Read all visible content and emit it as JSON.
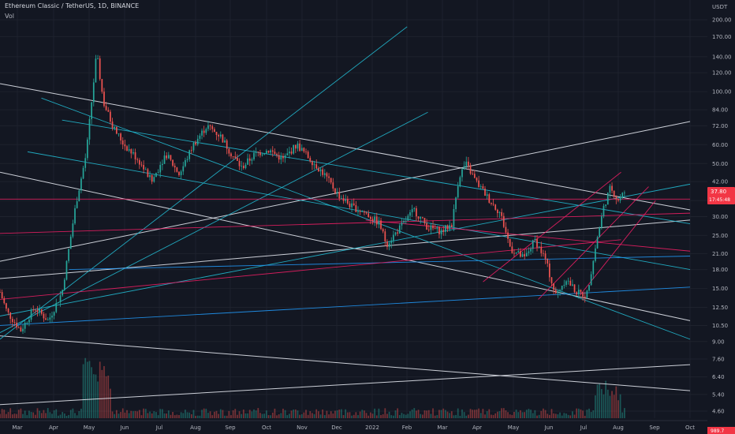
{
  "header": {
    "title": "Ethereum Classic / TetherUS, 1D, BINANCE",
    "indicator": "Vol"
  },
  "chart_data": {
    "type": "candlestick",
    "symbol": "Ethereum Classic / TetherUS",
    "interval": "1D",
    "exchange": "BINANCE",
    "currency": "USDT",
    "scale": "log",
    "y_ticks": [
      200,
      170,
      140,
      120,
      100,
      84,
      72,
      60,
      50,
      42,
      35,
      30,
      25,
      21,
      18,
      15,
      12.5,
      10.5,
      9,
      7.6,
      6.4,
      5.4,
      4.6
    ],
    "x_ticks": [
      "Mar",
      "Apr",
      "May",
      "Jun",
      "Jul",
      "Aug",
      "Sep",
      "Oct",
      "Nov",
      "Dec",
      "2022",
      "Feb",
      "Mar",
      "Apr",
      "May",
      "Jun",
      "Jul",
      "Aug",
      "Sep",
      "Oct"
    ],
    "last_price": "37.80",
    "countdown": "17:45:48",
    "volume_last": "989.7",
    "colors": {
      "up": "#26a69a",
      "down": "#ef5350",
      "white_line": "#e0e3eb",
      "cyan_line": "#22b8cf",
      "pink_line": "#e91e63",
      "blue_line": "#2196f3"
    },
    "path_close": [
      {
        "t": 0.0,
        "p": 14.5
      },
      {
        "t": 0.01,
        "p": 12.0
      },
      {
        "t": 0.03,
        "p": 10.0
      },
      {
        "t": 0.05,
        "p": 12.5
      },
      {
        "t": 0.07,
        "p": 11.0
      },
      {
        "t": 0.09,
        "p": 14.5
      },
      {
        "t": 0.11,
        "p": 34.0
      },
      {
        "t": 0.125,
        "p": 55.0
      },
      {
        "t": 0.14,
        "p": 145.0
      },
      {
        "t": 0.15,
        "p": 90.0
      },
      {
        "t": 0.165,
        "p": 70.0
      },
      {
        "t": 0.18,
        "p": 60.0
      },
      {
        "t": 0.2,
        "p": 52.0
      },
      {
        "t": 0.22,
        "p": 42.0
      },
      {
        "t": 0.24,
        "p": 55.0
      },
      {
        "t": 0.26,
        "p": 45.0
      },
      {
        "t": 0.28,
        "p": 60.0
      },
      {
        "t": 0.3,
        "p": 72.0
      },
      {
        "t": 0.32,
        "p": 65.0
      },
      {
        "t": 0.335,
        "p": 55.0
      },
      {
        "t": 0.35,
        "p": 48.0
      },
      {
        "t": 0.37,
        "p": 55.0
      },
      {
        "t": 0.39,
        "p": 57.0
      },
      {
        "t": 0.41,
        "p": 52.0
      },
      {
        "t": 0.43,
        "p": 60.0
      },
      {
        "t": 0.45,
        "p": 52.0
      },
      {
        "t": 0.47,
        "p": 45.0
      },
      {
        "t": 0.49,
        "p": 37.0
      },
      {
        "t": 0.51,
        "p": 33.0
      },
      {
        "t": 0.53,
        "p": 31.0
      },
      {
        "t": 0.55,
        "p": 28.0
      },
      {
        "t": 0.56,
        "p": 23.0
      },
      {
        "t": 0.58,
        "p": 27.0
      },
      {
        "t": 0.6,
        "p": 32.0
      },
      {
        "t": 0.62,
        "p": 27.0
      },
      {
        "t": 0.64,
        "p": 26.0
      },
      {
        "t": 0.655,
        "p": 28.0
      },
      {
        "t": 0.665,
        "p": 44.0
      },
      {
        "t": 0.675,
        "p": 50.0
      },
      {
        "t": 0.69,
        "p": 42.0
      },
      {
        "t": 0.71,
        "p": 35.0
      },
      {
        "t": 0.725,
        "p": 31.0
      },
      {
        "t": 0.74,
        "p": 22.0
      },
      {
        "t": 0.76,
        "p": 20.0
      },
      {
        "t": 0.775,
        "p": 24.0
      },
      {
        "t": 0.79,
        "p": 20.0
      },
      {
        "t": 0.805,
        "p": 14.0
      },
      {
        "t": 0.82,
        "p": 16.5
      },
      {
        "t": 0.835,
        "p": 14.5
      },
      {
        "t": 0.85,
        "p": 14.0
      },
      {
        "t": 0.865,
        "p": 24.0
      },
      {
        "t": 0.875,
        "p": 33.0
      },
      {
        "t": 0.885,
        "p": 40.0
      },
      {
        "t": 0.895,
        "p": 35.0
      },
      {
        "t": 0.905,
        "p": 37.8
      }
    ],
    "trendlines": [
      {
        "color": "white",
        "from": [
          0.0,
          108.0
        ],
        "to": [
          1.0,
          32.0
        ]
      },
      {
        "color": "white",
        "from": [
          0.0,
          46.0
        ],
        "to": [
          1.0,
          11.0
        ]
      },
      {
        "color": "white",
        "from": [
          0.0,
          9.5
        ],
        "to": [
          1.0,
          5.6
        ]
      },
      {
        "color": "white",
        "from": [
          0.0,
          4.9
        ],
        "to": [
          1.0,
          7.2
        ]
      },
      {
        "color": "white",
        "from": [
          0.0,
          19.5
        ],
        "to": [
          1.0,
          75.0
        ]
      },
      {
        "color": "white",
        "from": [
          0.0,
          16.5
        ],
        "to": [
          1.0,
          29.0
        ]
      },
      {
        "color": "cyan",
        "from": [
          0.0,
          9.2
        ],
        "to": [
          0.59,
          187.0
        ]
      },
      {
        "color": "cyan",
        "from": [
          0.06,
          94.0
        ],
        "to": [
          1.0,
          9.2
        ]
      },
      {
        "color": "cyan",
        "from": [
          0.09,
          76.0
        ],
        "to": [
          1.0,
          28.0
        ]
      },
      {
        "color": "cyan",
        "from": [
          0.04,
          56.0
        ],
        "to": [
          1.0,
          18.0
        ]
      },
      {
        "color": "cyan",
        "from": [
          0.0,
          9.8
        ],
        "to": [
          0.62,
          82.0
        ]
      },
      {
        "color": "cyan",
        "from": [
          0.0,
          11.5
        ],
        "to": [
          1.0,
          41.0
        ]
      },
      {
        "color": "blue",
        "from": [
          0.0,
          10.5
        ],
        "to": [
          1.0,
          15.2
        ]
      },
      {
        "color": "blue",
        "from": [
          0.1,
          18.0
        ],
        "to": [
          1.0,
          20.5
        ]
      },
      {
        "color": "pink",
        "from": [
          0.0,
          25.5
        ],
        "to": [
          1.0,
          31.0
        ]
      },
      {
        "color": "pink",
        "from": [
          0.0,
          13.5
        ],
        "to": [
          0.9,
          24.0
        ]
      },
      {
        "color": "pink",
        "from": [
          0.53,
          29.0
        ],
        "to": [
          1.0,
          21.5
        ]
      },
      {
        "color": "pink",
        "from": [
          0.7,
          16.0
        ],
        "to": [
          0.9,
          46.0
        ]
      },
      {
        "color": "pink",
        "from": [
          0.78,
          13.5
        ],
        "to": [
          0.94,
          40.0
        ]
      },
      {
        "color": "pink",
        "from": [
          0.84,
          14.0
        ],
        "to": [
          0.95,
          35.0
        ]
      },
      {
        "color": "pink",
        "from": [
          0.0,
          35.5
        ],
        "to": [
          1.0,
          35.5
        ]
      }
    ]
  }
}
